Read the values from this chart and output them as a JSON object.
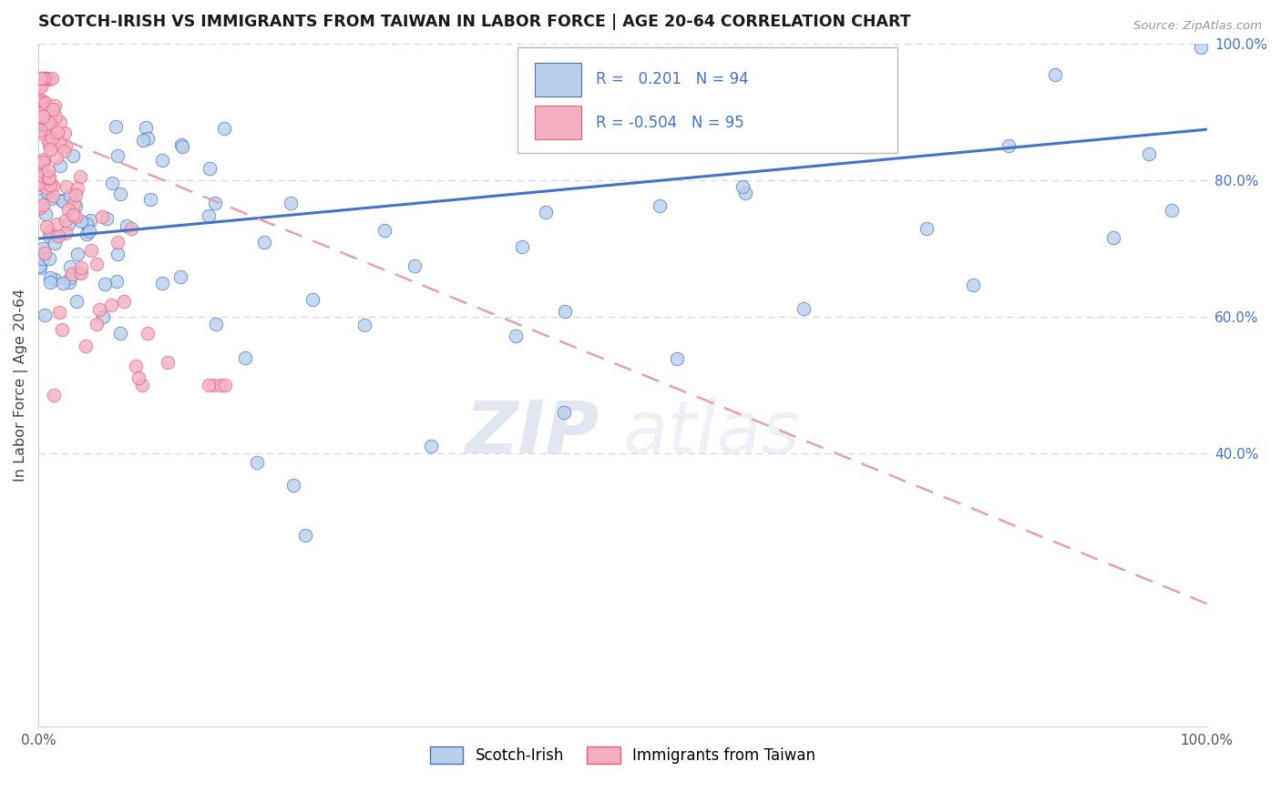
{
  "title": "SCOTCH-IRISH VS IMMIGRANTS FROM TAIWAN IN LABOR FORCE | AGE 20-64 CORRELATION CHART",
  "source_text": "Source: ZipAtlas.com",
  "ylabel": "In Labor Force | Age 20-64",
  "watermark_zip": "ZIP",
  "watermark_atlas": "atlas",
  "legend_r1_val": "0.201",
  "legend_n1": "N = 94",
  "legend_r2_val": "-0.504",
  "legend_n2": "N = 95",
  "scotch_irish_fill": "#b8d0ea",
  "scotch_irish_edge": "#4472C4",
  "taiwan_fill": "#f4b0c0",
  "taiwan_edge": "#e06080",
  "blue_line_color": "#4472C4",
  "pink_line_color": "#e8a0b0",
  "blue_line_y0": 0.715,
  "blue_line_y1": 0.875,
  "pink_line_y0": 0.875,
  "pink_line_y1": 0.18,
  "xlim": [
    0.0,
    1.0
  ],
  "ylim": [
    0.0,
    1.0
  ],
  "yticks_right": [
    0.4,
    0.6,
    0.8,
    1.0
  ],
  "ytick_labels": [
    "40.0%",
    "60.0%",
    "80.0%",
    "100.0%"
  ],
  "right_tick_color": "#4472C4",
  "grid_color": "#d8d8d8",
  "title_fontsize": 12.5,
  "marker_size": 110
}
